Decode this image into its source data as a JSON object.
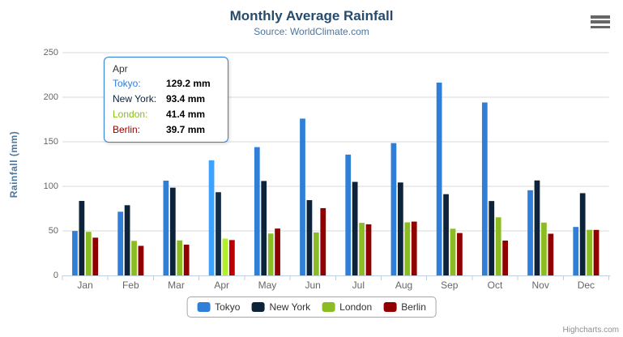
{
  "chart": {
    "title": "Monthly Average Rainfall",
    "subtitle": "Source: WorldClimate.com",
    "credits": "Highcharts.com"
  },
  "chart_data": {
    "type": "bar",
    "title": "Monthly Average Rainfall",
    "subtitle": "Source: WorldClimate.com",
    "xlabel": "",
    "ylabel": "Rainfall (mm)",
    "ylim": [
      0,
      250
    ],
    "yticks": [
      0,
      50,
      100,
      150,
      200,
      250
    ],
    "grid": true,
    "legend_position": "bottom",
    "categories": [
      "Jan",
      "Feb",
      "Mar",
      "Apr",
      "May",
      "Jun",
      "Jul",
      "Aug",
      "Sep",
      "Oct",
      "Nov",
      "Dec"
    ],
    "series": [
      {
        "name": "Tokyo",
        "color": "#2f7ed8",
        "values": [
          49.9,
          71.5,
          106.4,
          129.2,
          144.0,
          176.0,
          135.6,
          148.5,
          216.4,
          194.1,
          95.6,
          54.4
        ]
      },
      {
        "name": "New York",
        "color": "#0d233a",
        "values": [
          83.6,
          78.8,
          98.5,
          93.4,
          106.0,
          84.5,
          105.0,
          104.3,
          91.2,
          83.5,
          106.6,
          92.3
        ]
      },
      {
        "name": "London",
        "color": "#8bbc21",
        "values": [
          48.9,
          38.8,
          39.3,
          41.4,
          47.0,
          48.3,
          59.0,
          59.6,
          52.4,
          65.2,
          59.3,
          51.2
        ]
      },
      {
        "name": "Berlin",
        "color": "#910000",
        "values": [
          42.4,
          33.2,
          34.5,
          39.7,
          52.6,
          75.5,
          57.4,
          60.4,
          47.6,
          39.1,
          46.8,
          51.1
        ]
      }
    ]
  },
  "tooltip": {
    "header": "Apr",
    "category_index": 3,
    "border_color": "#2f7ed8",
    "rows": [
      {
        "label": "Tokyo:",
        "value": "129.2",
        "unit": "mm",
        "color": "#2f7ed8"
      },
      {
        "label": "New York:",
        "value": "93.4",
        "unit": "mm",
        "color": "#0d233a"
      },
      {
        "label": "London:",
        "value": "41.4",
        "unit": "mm",
        "color": "#8bbc21"
      },
      {
        "label": "Berlin:",
        "value": "39.7",
        "unit": "mm",
        "color": "#910000"
      }
    ]
  },
  "colors": {
    "gridline": "#d8d8d8",
    "axis_line": "#c0d0e0",
    "tick_label": "#666666",
    "title": "#274b6d",
    "subtitle": "#4d759e"
  }
}
